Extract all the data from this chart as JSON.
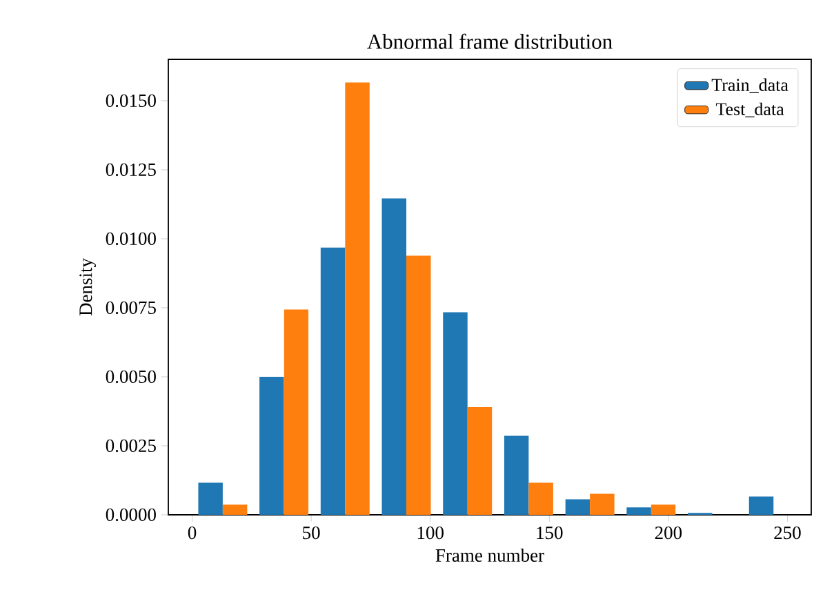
{
  "chart_data": {
    "type": "histogram",
    "title": "Abnormal frame distribution",
    "xlabel": "Frame number",
    "ylabel": "Density",
    "bins": [
      0,
      25.7,
      51.4,
      77.1,
      102.8,
      128.5,
      154.2,
      179.9,
      205.6,
      231.3,
      257
    ],
    "series": [
      {
        "name": "Train_data",
        "color": "#1f77b4",
        "values": [
          0.00116,
          0.005,
          0.00968,
          0.01146,
          0.00734,
          0.00286,
          0.00056,
          0.00027,
          7e-05,
          0.00066
        ]
      },
      {
        "name": "Test_data",
        "color": "#ff7f0e",
        "values": [
          0.00037,
          0.00744,
          0.01566,
          0.00939,
          0.0039,
          0.00116,
          0.00076,
          0.00037,
          0,
          0
        ]
      }
    ],
    "xlim": [
      -10,
      260
    ],
    "ylim": [
      0,
      0.0165
    ],
    "xticks": [
      0,
      50,
      100,
      150,
      200,
      250
    ],
    "yticks": [
      {
        "value": 0,
        "label": "0.0000"
      },
      {
        "value": 0.0025,
        "label": "0.0025"
      },
      {
        "value": 0.005,
        "label": "0.0050"
      },
      {
        "value": 0.0075,
        "label": "0.0075"
      },
      {
        "value": 0.01,
        "label": "0.0100"
      },
      {
        "value": 0.0125,
        "label": "0.0125"
      },
      {
        "value": 0.015,
        "label": "0.0150"
      }
    ],
    "legend": "top right",
    "grid": false
  }
}
